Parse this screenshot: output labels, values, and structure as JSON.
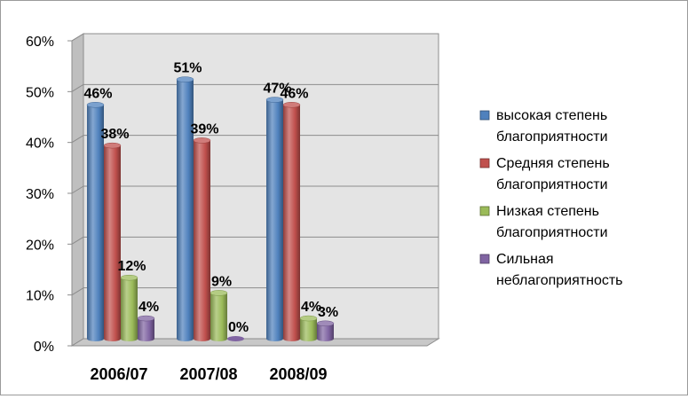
{
  "chart_data": {
    "type": "bar",
    "categories": [
      "2006/07",
      "2007/08",
      "2008/09"
    ],
    "series": [
      {
        "name": "высокая степень благоприятности",
        "values": [
          46,
          51,
          47
        ],
        "color": "#4f81bd",
        "value_labels": [
          "46%",
          "51%",
          "47%"
        ]
      },
      {
        "name": "Средняя степень благоприятности",
        "values": [
          38,
          39,
          46
        ],
        "color": "#c0504d",
        "value_labels": [
          "38%",
          "39%",
          "46%"
        ]
      },
      {
        "name": "Низкая степень благоприятности",
        "values": [
          12,
          9,
          4
        ],
        "color": "#9bbb59",
        "value_labels": [
          "12%",
          "9%",
          "4%"
        ]
      },
      {
        "name": "Сильная неблагоприятность",
        "values": [
          4,
          0,
          3
        ],
        "color": "#8064a2",
        "value_labels": [
          "4%",
          "0%",
          "3%"
        ]
      }
    ],
    "y_ticks": [
      "0%",
      "10%",
      "20%",
      "30%",
      "40%",
      "50%",
      "60%"
    ],
    "ylim": [
      0,
      60
    ],
    "grid": true,
    "legend_position": "right",
    "style": "3d-cylinder"
  },
  "legend_lines": [
    [
      "высокая степень",
      "благоприятности"
    ],
    [
      "Средняя степень",
      "благоприятности"
    ],
    [
      "Низкая степень",
      "благоприятности"
    ],
    [
      "Сильная",
      "неблагоприятность"
    ]
  ]
}
